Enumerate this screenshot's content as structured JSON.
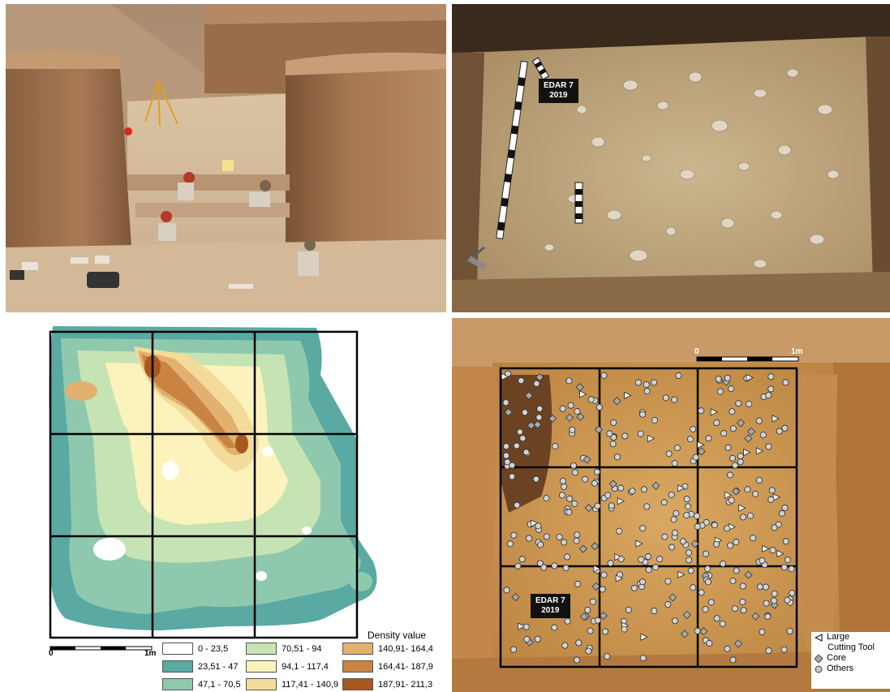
{
  "photo_tr": {
    "label_line1": "EDAR 7",
    "label_line2": "2019"
  },
  "photo_br": {
    "label_line1": "EDAR 7",
    "label_line2": "2019",
    "scale_zero": "0",
    "scale_end": "1m"
  },
  "density_map": {
    "scale_zero": "0",
    "scale_end": "1m",
    "legend_title": "Density value",
    "classes": [
      {
        "label": "0 - 23,5",
        "color": "#ffffff"
      },
      {
        "label": "23,51 - 47",
        "color": "#5aa9a3"
      },
      {
        "label": "47,1 - 70,5",
        "color": "#8ec9ae"
      },
      {
        "label": "70,51 - 94",
        "color": "#c6e3b3"
      },
      {
        "label": "94,1 - 117,4",
        "color": "#fbf3bb"
      },
      {
        "label": "117,41 - 140,9",
        "color": "#f3dc9b"
      },
      {
        "label": "140,91- 164,4",
        "color": "#e2b06f"
      },
      {
        "label": "164,41- 187,9",
        "color": "#c98443"
      },
      {
        "label": "187,91- 211,3",
        "color": "#a8581f"
      }
    ]
  },
  "artifact_legend": {
    "large_tool_line1": "Large",
    "large_tool_line2": "Cutting Tool",
    "core": "Core",
    "others": "Others"
  }
}
